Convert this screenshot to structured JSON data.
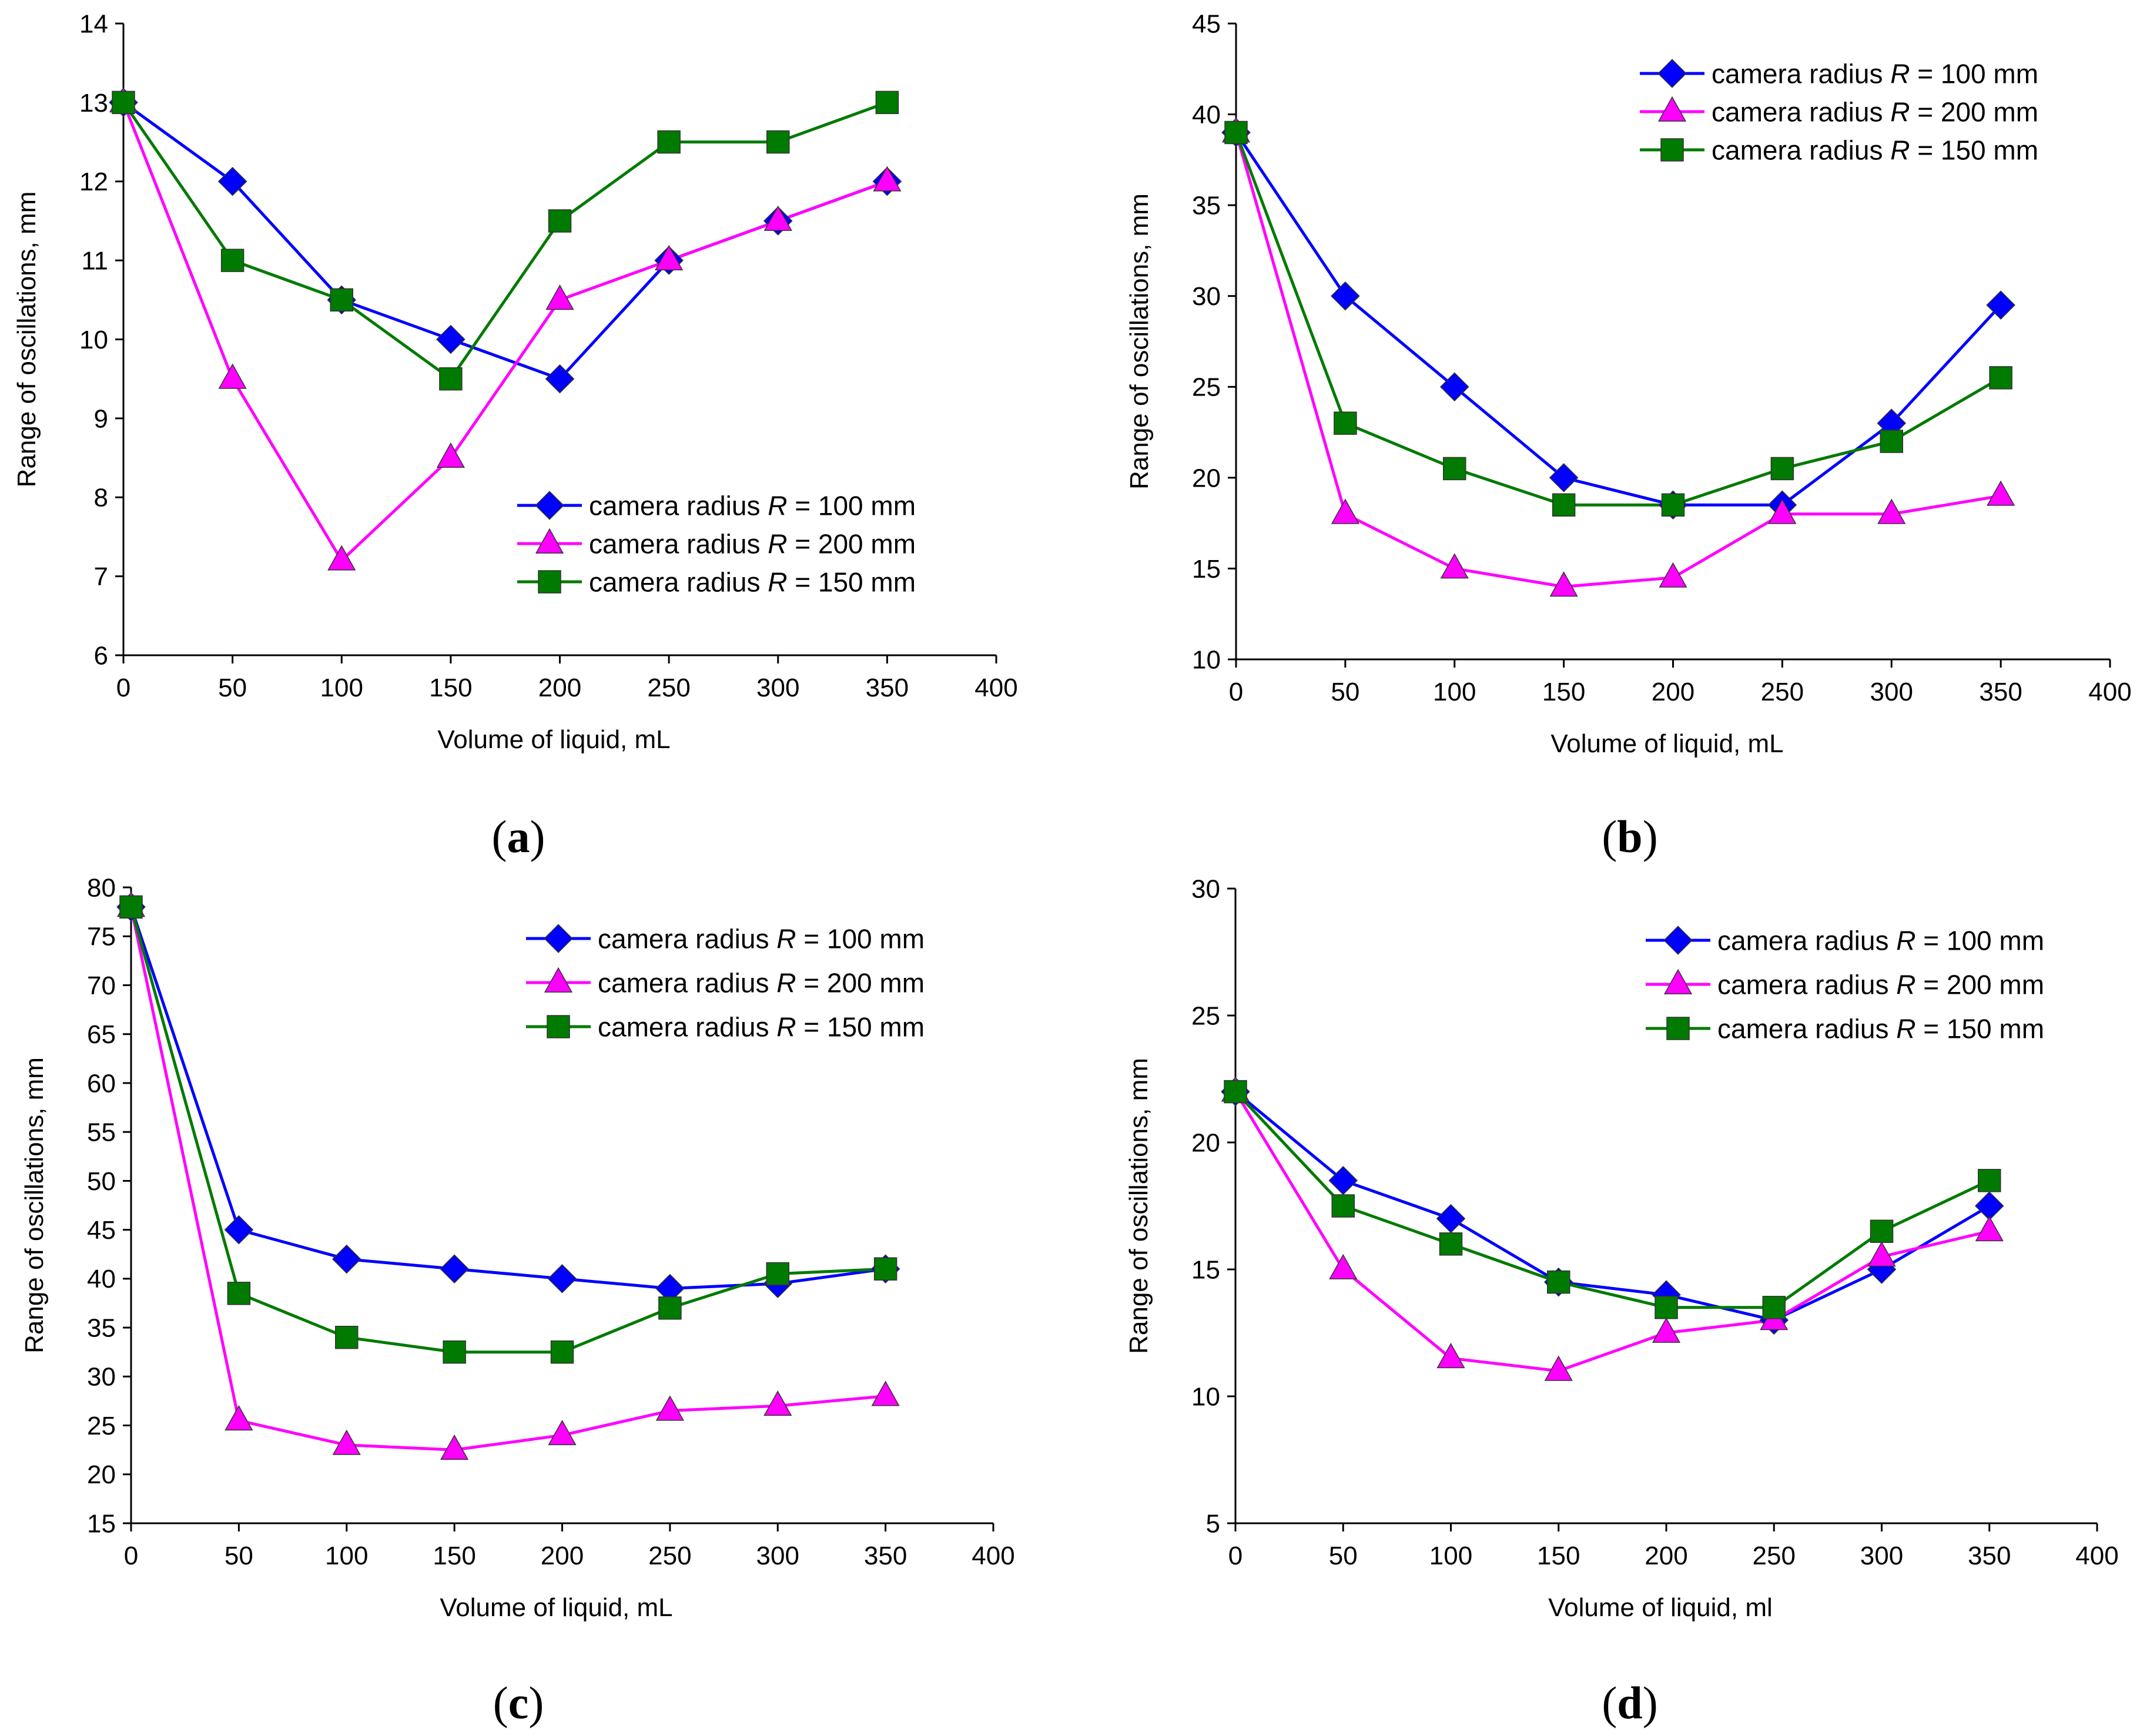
{
  "colors": {
    "r100": "#0000ff",
    "r200": "#ff00ff",
    "r150": "#007a00",
    "axis": "#000000"
  },
  "chart_data": [
    {
      "id": "a",
      "panel_label": "a",
      "type": "line",
      "xlabel": "Volume of liquid, mL",
      "ylabel": "Range of oscillations, mm",
      "xlim": [
        0,
        400
      ],
      "ylim": [
        6,
        14
      ],
      "x_ticks": [
        0,
        50,
        100,
        150,
        200,
        250,
        300,
        350,
        400
      ],
      "y_ticks": [
        6,
        7,
        8,
        9,
        10,
        11,
        12,
        13,
        14
      ],
      "legend_position": "lower-right",
      "x": [
        0,
        50,
        100,
        150,
        200,
        250,
        300,
        350
      ],
      "series": [
        {
          "key": "r100",
          "name_prefix": "camera radius ",
          "name_symbol": "R",
          "name_suffix": " = 100 mm",
          "marker": "diamond",
          "values": [
            13,
            12,
            10.5,
            10,
            9.5,
            11,
            11.5,
            12
          ]
        },
        {
          "key": "r200",
          "name_prefix": "camera radius ",
          "name_symbol": "R",
          "name_suffix": " = 200 mm",
          "marker": "triangle",
          "values": [
            13,
            9.5,
            7.2,
            8.5,
            10.5,
            11,
            11.5,
            12
          ]
        },
        {
          "key": "r150",
          "name_prefix": "camera radius ",
          "name_symbol": "R",
          "name_suffix": " = 150 mm",
          "marker": "square",
          "values": [
            13,
            11,
            10.5,
            9.5,
            11.5,
            12.5,
            12.5,
            13
          ]
        }
      ]
    },
    {
      "id": "b",
      "panel_label": "b",
      "type": "line",
      "xlabel": "Volume of liquid, mL",
      "ylabel": "Range of oscillations, mm",
      "xlim": [
        0,
        400
      ],
      "ylim": [
        10,
        45
      ],
      "x_ticks": [
        0,
        50,
        100,
        150,
        200,
        250,
        300,
        350,
        400
      ],
      "y_ticks": [
        10,
        15,
        20,
        25,
        30,
        35,
        40,
        45
      ],
      "legend_position": "top-right",
      "x": [
        0,
        50,
        100,
        150,
        200,
        250,
        300,
        350
      ],
      "series": [
        {
          "key": "r100",
          "name_prefix": "camera radius ",
          "name_symbol": "R",
          "name_suffix": " = 100 mm",
          "marker": "diamond",
          "values": [
            39,
            30,
            25,
            20,
            18.5,
            18.5,
            23,
            29.5
          ]
        },
        {
          "key": "r200",
          "name_prefix": "camera radius ",
          "name_symbol": "R",
          "name_suffix": " = 200 mm",
          "marker": "triangle",
          "values": [
            39,
            18,
            15,
            14,
            14.5,
            18,
            18,
            19
          ]
        },
        {
          "key": "r150",
          "name_prefix": "camera radius ",
          "name_symbol": "R",
          "name_suffix": " = 150 mm",
          "marker": "square",
          "values": [
            39,
            23,
            20.5,
            18.5,
            18.5,
            20.5,
            22,
            25.5
          ]
        }
      ]
    },
    {
      "id": "c",
      "panel_label": "c",
      "type": "line",
      "xlabel": "Volume of liquid, mL",
      "ylabel": "Range of oscillations, mm",
      "xlim": [
        0,
        400
      ],
      "ylim": [
        15,
        80
      ],
      "x_ticks": [
        0,
        50,
        100,
        150,
        200,
        250,
        300,
        350,
        400
      ],
      "y_ticks": [
        15,
        20,
        25,
        30,
        35,
        40,
        45,
        50,
        55,
        60,
        65,
        70,
        75,
        80
      ],
      "legend_position": "top-right",
      "x": [
        0,
        50,
        100,
        150,
        200,
        250,
        300,
        350
      ],
      "series": [
        {
          "key": "r100",
          "name_prefix": "camera radius ",
          "name_symbol": "R",
          "name_suffix": " = 100 mm",
          "marker": "diamond",
          "values": [
            78,
            45,
            42,
            41,
            40,
            39,
            39.5,
            41
          ]
        },
        {
          "key": "r200",
          "name_prefix": "camera radius ",
          "name_symbol": "R",
          "name_suffix": " = 200 mm",
          "marker": "triangle",
          "values": [
            78,
            25.5,
            23,
            22.5,
            24,
            26.5,
            27,
            28
          ]
        },
        {
          "key": "r150",
          "name_prefix": "camera radius ",
          "name_symbol": "R",
          "name_suffix": " = 150 mm",
          "marker": "square",
          "values": [
            78,
            38.5,
            34,
            32.5,
            32.5,
            37,
            40.5,
            41
          ]
        }
      ]
    },
    {
      "id": "d",
      "panel_label": "d",
      "type": "line",
      "xlabel": "Volume of liquid, ml",
      "ylabel": "Range of oscillations, mm",
      "xlim": [
        0,
        400
      ],
      "ylim": [
        5,
        30
      ],
      "x_ticks": [
        0,
        50,
        100,
        150,
        200,
        250,
        300,
        350,
        400
      ],
      "y_ticks": [
        5,
        10,
        15,
        20,
        25,
        30
      ],
      "legend_position": "top-right",
      "x": [
        0,
        50,
        100,
        150,
        200,
        250,
        300,
        350
      ],
      "series": [
        {
          "key": "r100",
          "name_prefix": "camera radius ",
          "name_symbol": "R",
          "name_suffix": " = 100 mm",
          "marker": "diamond",
          "values": [
            22,
            18.5,
            17,
            14.5,
            14,
            13,
            15,
            17.5
          ]
        },
        {
          "key": "r200",
          "name_prefix": "camera radius ",
          "name_symbol": "R",
          "name_suffix": " = 200 mm",
          "marker": "triangle",
          "values": [
            22,
            15,
            11.5,
            11,
            12.5,
            13,
            15.5,
            16.5
          ]
        },
        {
          "key": "r150",
          "name_prefix": "camera radius ",
          "name_symbol": "R",
          "name_suffix": " = 150 mm",
          "marker": "square",
          "values": [
            22,
            17.5,
            16,
            14.5,
            13.5,
            13.5,
            16.5,
            18.5
          ]
        }
      ]
    }
  ]
}
